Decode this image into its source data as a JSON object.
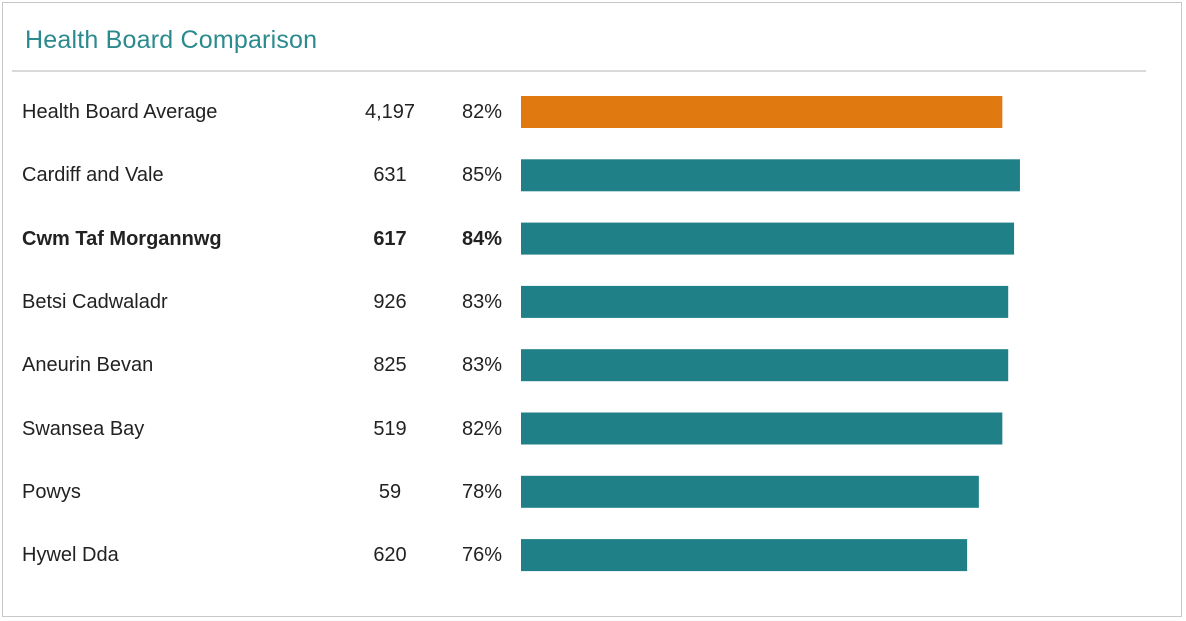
{
  "title": "Health Board Comparison",
  "colors": {
    "average_bar": "#e07a10",
    "board_bar": "#1f8088",
    "title": "#2b8a8e"
  },
  "chart_data": {
    "type": "bar",
    "orientation": "horizontal",
    "title": "Health Board Comparison",
    "categories": [
      "Health Board Average",
      "Cardiff and Vale",
      "Cwm Taf Morgannwg",
      "Betsi Cadwaladr",
      "Aneurin Bevan",
      "Swansea Bay",
      "Powys",
      "Hywel Dda"
    ],
    "counts": [
      "4,197",
      "631",
      "617",
      "926",
      "825",
      "519",
      "59",
      "620"
    ],
    "percent_labels": [
      "82%",
      "85%",
      "84%",
      "83%",
      "83%",
      "82%",
      "78%",
      "76%"
    ],
    "values": [
      82,
      85,
      84,
      83,
      83,
      82,
      78,
      76
    ],
    "highlighted": "Cwm Taf Morgannwg",
    "average_category": "Health Board Average",
    "xlim": [
      0,
      100
    ],
    "grid": false
  }
}
